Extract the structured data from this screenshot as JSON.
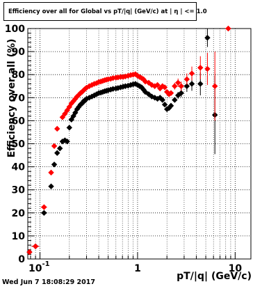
{
  "chart_data": {
    "type": "scatter",
    "title": "Efficiency over all for Global vs pT/|q| (GeV/c) at | η | <= 1.0",
    "xlabel": "pT/|q| (GeV/c)",
    "ylabel": "Efficiency over all (%)",
    "x_scale": "log",
    "xlim": [
      0.075,
      14.5
    ],
    "ylim": [
      0,
      100
    ],
    "grid": true,
    "x_ticks": [
      "10",
      "1",
      "10"
    ],
    "x_tick_values": [
      0.1,
      1,
      10
    ],
    "x_tick_display": [
      {
        "base": "10",
        "exp": "-1"
      },
      {
        "base": "1",
        "exp": ""
      },
      {
        "base": "10",
        "exp": ""
      }
    ],
    "y_ticks": [
      "0",
      "10",
      "20",
      "30",
      "40",
      "50",
      "60",
      "70",
      "80",
      "90",
      "100"
    ],
    "y_tick_values": [
      0,
      10,
      20,
      30,
      40,
      50,
      60,
      70,
      80,
      90,
      100
    ],
    "series": [
      {
        "color": "#000000",
        "points": [
          {
            "x": 0.078,
            "y": 3.0,
            "err": 0.8,
            "xerr": 0.004
          },
          {
            "x": 0.09,
            "y": 5.5,
            "err": 0.8,
            "xerr": 0.008
          },
          {
            "x": 0.11,
            "y": 20.0,
            "err": 0.8,
            "xerr": 0.008
          },
          {
            "x": 0.13,
            "y": 31.5,
            "err": 0.8
          },
          {
            "x": 0.14,
            "y": 41.0,
            "err": 0.8
          },
          {
            "x": 0.15,
            "y": 46.0,
            "err": 0.8
          },
          {
            "x": 0.16,
            "y": 48.0,
            "err": 0.8
          },
          {
            "x": 0.17,
            "y": 51.0,
            "err": 0.8
          },
          {
            "x": 0.18,
            "y": 51.5,
            "err": 0.8
          },
          {
            "x": 0.19,
            "y": 51.0,
            "err": 0.8
          },
          {
            "x": 0.2,
            "y": 57.0,
            "err": 0.7
          },
          {
            "x": 0.21,
            "y": 60.5
          },
          {
            "x": 0.22,
            "y": 62.0
          },
          {
            "x": 0.23,
            "y": 63.5
          },
          {
            "x": 0.24,
            "y": 65.0
          },
          {
            "x": 0.25,
            "y": 66.0
          },
          {
            "x": 0.26,
            "y": 67.0
          },
          {
            "x": 0.27,
            "y": 67.5
          },
          {
            "x": 0.28,
            "y": 68.5
          },
          {
            "x": 0.29,
            "y": 68.8
          },
          {
            "x": 0.3,
            "y": 69.5
          },
          {
            "x": 0.32,
            "y": 70.0
          },
          {
            "x": 0.34,
            "y": 70.5
          },
          {
            "x": 0.36,
            "y": 71.0
          },
          {
            "x": 0.38,
            "y": 71.5
          },
          {
            "x": 0.4,
            "y": 72.0
          },
          {
            "x": 0.42,
            "y": 72.2
          },
          {
            "x": 0.44,
            "y": 72.5
          },
          {
            "x": 0.46,
            "y": 72.8
          },
          {
            "x": 0.48,
            "y": 73.0
          },
          {
            "x": 0.5,
            "y": 73.2
          },
          {
            "x": 0.53,
            "y": 73.5
          },
          {
            "x": 0.56,
            "y": 73.8
          },
          {
            "x": 0.6,
            "y": 74.0
          },
          {
            "x": 0.63,
            "y": 74.2
          },
          {
            "x": 0.67,
            "y": 74.5
          },
          {
            "x": 0.71,
            "y": 74.8
          },
          {
            "x": 0.75,
            "y": 75.0
          },
          {
            "x": 0.8,
            "y": 75.2
          },
          {
            "x": 0.85,
            "y": 75.5
          },
          {
            "x": 0.9,
            "y": 75.8
          },
          {
            "x": 0.95,
            "y": 76.0
          },
          {
            "x": 1.0,
            "y": 75.5
          },
          {
            "x": 1.05,
            "y": 75.0
          },
          {
            "x": 1.1,
            "y": 74.5
          },
          {
            "x": 1.15,
            "y": 73.5
          },
          {
            "x": 1.2,
            "y": 72.5
          },
          {
            "x": 1.3,
            "y": 71.5
          },
          {
            "x": 1.4,
            "y": 70.5
          },
          {
            "x": 1.5,
            "y": 70.0
          },
          {
            "x": 1.6,
            "y": 69.5
          },
          {
            "x": 1.7,
            "y": 70.0
          },
          {
            "x": 1.8,
            "y": 69.0
          },
          {
            "x": 1.9,
            "y": 67.0
          },
          {
            "x": 2.0,
            "y": 65.0
          },
          {
            "x": 2.1,
            "y": 65.5
          },
          {
            "x": 2.2,
            "y": 66.5
          },
          {
            "x": 2.4,
            "y": 69.0
          },
          {
            "x": 2.6,
            "y": 71.0,
            "err": 1.5
          },
          {
            "x": 2.8,
            "y": 72.0,
            "err": 1.8
          },
          {
            "x": 3.2,
            "y": 75.0,
            "err": 2.5
          },
          {
            "x": 3.6,
            "y": 76.0,
            "err": 3.0
          },
          {
            "x": 4.4,
            "y": 76.0,
            "err": 5.0
          },
          {
            "x": 5.2,
            "y": 96.0,
            "err": 4.0
          },
          {
            "x": 6.2,
            "y": 62.5,
            "err": 17.0
          }
        ]
      },
      {
        "color": "#ff0000",
        "points": [
          {
            "x": 0.078,
            "y": 3.0,
            "err": 0.8,
            "xerr": 0.004
          },
          {
            "x": 0.09,
            "y": 5.5,
            "err": 0.8,
            "xerr": 0.008
          },
          {
            "x": 0.11,
            "y": 22.5,
            "err": 0.8,
            "xerr": 0.008
          },
          {
            "x": 0.13,
            "y": 37.5,
            "err": 0.8
          },
          {
            "x": 0.14,
            "y": 49.0,
            "err": 0.8
          },
          {
            "x": 0.15,
            "y": 56.5,
            "err": 0.8
          },
          {
            "x": 0.17,
            "y": 61.5
          },
          {
            "x": 0.18,
            "y": 63.0
          },
          {
            "x": 0.19,
            "y": 64.5
          },
          {
            "x": 0.2,
            "y": 66.0
          },
          {
            "x": 0.21,
            "y": 67.5
          },
          {
            "x": 0.22,
            "y": 68.5
          },
          {
            "x": 0.23,
            "y": 69.5
          },
          {
            "x": 0.24,
            "y": 70.5
          },
          {
            "x": 0.25,
            "y": 71.2
          },
          {
            "x": 0.26,
            "y": 72.0
          },
          {
            "x": 0.27,
            "y": 72.5
          },
          {
            "x": 0.28,
            "y": 73.2
          },
          {
            "x": 0.29,
            "y": 73.8
          },
          {
            "x": 0.3,
            "y": 74.3
          },
          {
            "x": 0.32,
            "y": 75.0
          },
          {
            "x": 0.34,
            "y": 75.5
          },
          {
            "x": 0.36,
            "y": 76.0
          },
          {
            "x": 0.38,
            "y": 76.3
          },
          {
            "x": 0.4,
            "y": 76.8
          },
          {
            "x": 0.42,
            "y": 77.0
          },
          {
            "x": 0.44,
            "y": 77.3
          },
          {
            "x": 0.46,
            "y": 77.6
          },
          {
            "x": 0.48,
            "y": 77.8
          },
          {
            "x": 0.5,
            "y": 78.0
          },
          {
            "x": 0.53,
            "y": 78.2
          },
          {
            "x": 0.56,
            "y": 78.5
          },
          {
            "x": 0.6,
            "y": 78.7
          },
          {
            "x": 0.63,
            "y": 78.8
          },
          {
            "x": 0.67,
            "y": 79.0
          },
          {
            "x": 0.71,
            "y": 79.0
          },
          {
            "x": 0.75,
            "y": 79.2
          },
          {
            "x": 0.8,
            "y": 79.5
          },
          {
            "x": 0.85,
            "y": 79.8
          },
          {
            "x": 0.9,
            "y": 80.0
          },
          {
            "x": 0.95,
            "y": 80.2
          },
          {
            "x": 1.0,
            "y": 79.5
          },
          {
            "x": 1.05,
            "y": 79.0
          },
          {
            "x": 1.1,
            "y": 78.5
          },
          {
            "x": 1.15,
            "y": 78.0
          },
          {
            "x": 1.2,
            "y": 77.0
          },
          {
            "x": 1.3,
            "y": 76.5
          },
          {
            "x": 1.4,
            "y": 75.5
          },
          {
            "x": 1.5,
            "y": 75.0
          },
          {
            "x": 1.6,
            "y": 75.5
          },
          {
            "x": 1.7,
            "y": 74.0
          },
          {
            "x": 1.8,
            "y": 75.0
          },
          {
            "x": 1.9,
            "y": 74.5
          },
          {
            "x": 2.0,
            "y": 72.5
          },
          {
            "x": 2.1,
            "y": 71.5
          },
          {
            "x": 2.2,
            "y": 72.0
          },
          {
            "x": 2.4,
            "y": 75.0,
            "err": 1.5
          },
          {
            "x": 2.6,
            "y": 76.5,
            "err": 1.8
          },
          {
            "x": 2.8,
            "y": 75.0,
            "err": 2.0
          },
          {
            "x": 3.2,
            "y": 78.0,
            "err": 2.5
          },
          {
            "x": 3.6,
            "y": 80.5,
            "err": 3.0
          },
          {
            "x": 4.4,
            "y": 83.0,
            "err": 5.0
          },
          {
            "x": 5.2,
            "y": 82.5,
            "err": 7.0
          },
          {
            "x": 6.2,
            "y": 75.0,
            "err": 15.0
          },
          {
            "x": 8.5,
            "y": 100.0,
            "err": 0.5,
            "xerr": 0.6
          }
        ]
      }
    ],
    "footer": "Wed Jun  7 18:08:29 2017"
  }
}
